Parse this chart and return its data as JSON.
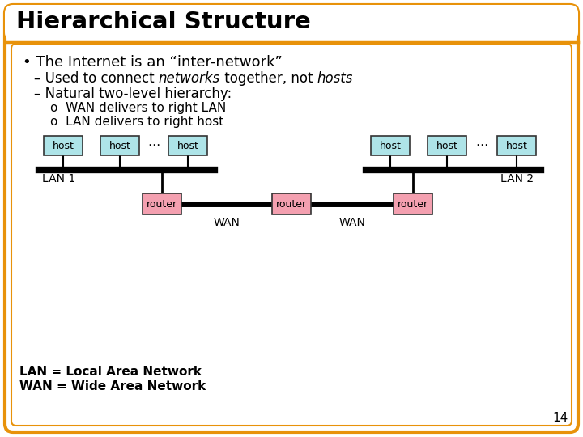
{
  "title": "Hierarchical Structure",
  "slide_bg": "#ffffff",
  "border_color": "#e8920a",
  "title_line_color": "#e8920a",
  "bullet1": "The Internet is an “inter-network”",
  "host_color": "#aee4e8",
  "router_color": "#f4a0b0",
  "node_border": "#333333",
  "lan_label1": "LAN 1",
  "lan_label2": "LAN 2",
  "wan_label1": "WAN",
  "wan_label2": "WAN",
  "footnote_lan": "LAN = Local Area Network",
  "footnote_wan": "WAN = Wide Area Network",
  "page_num": "14"
}
